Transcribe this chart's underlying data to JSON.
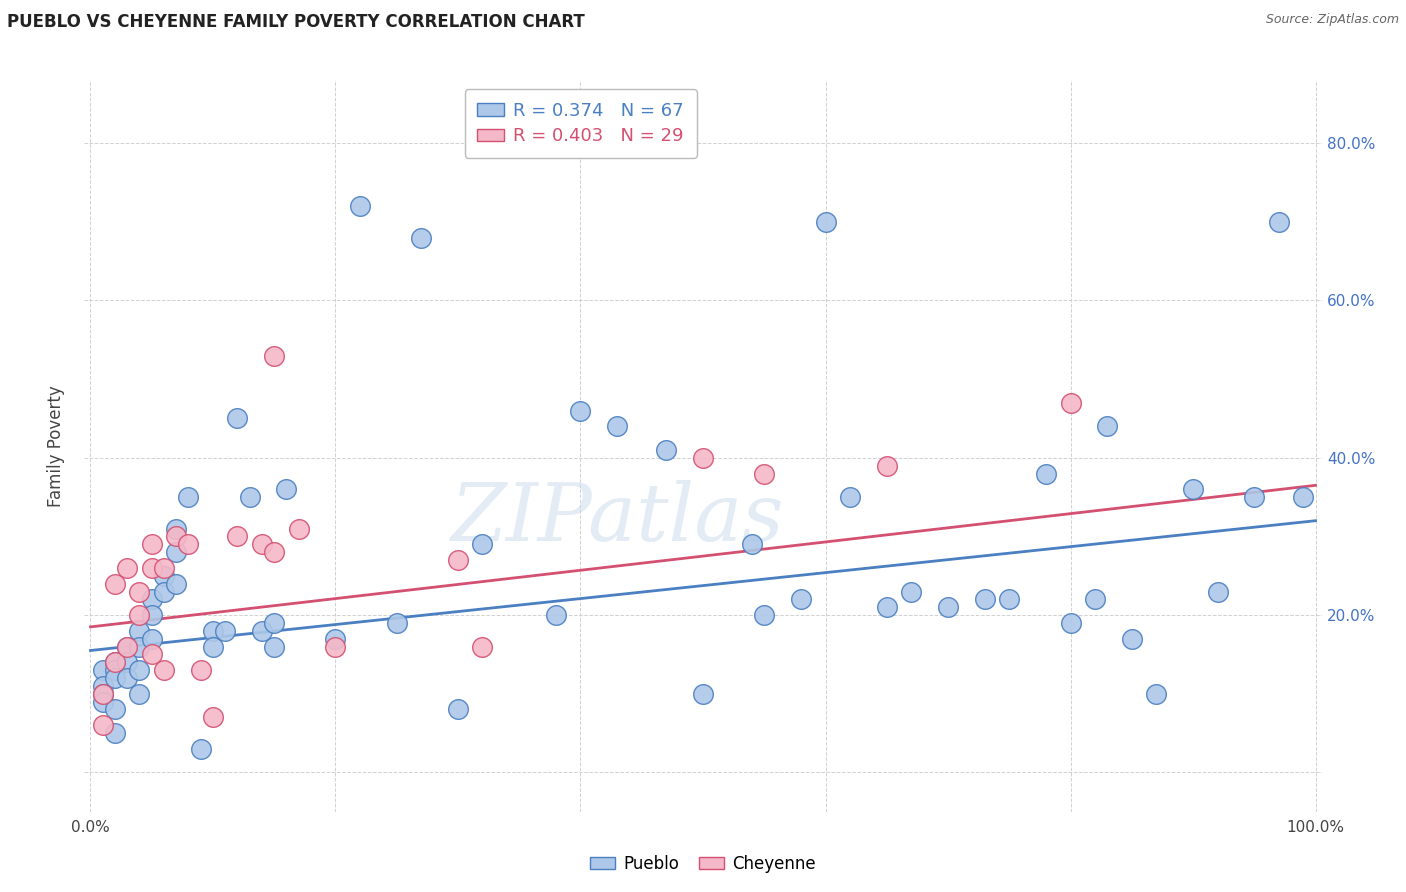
{
  "title": "PUEBLO VS CHEYENNE FAMILY POVERTY CORRELATION CHART",
  "source": "Source: ZipAtlas.com",
  "ylabel": "Family Poverty",
  "pueblo_R": 0.374,
  "pueblo_N": 67,
  "cheyenne_R": 0.403,
  "cheyenne_N": 29,
  "pueblo_color": "#adc8e8",
  "pueblo_edge_color": "#4a7fc1",
  "cheyenne_color": "#f5b8c8",
  "cheyenne_edge_color": "#d45070",
  "pueblo_x": [
    0.01,
    0.01,
    0.01,
    0.01,
    0.02,
    0.02,
    0.02,
    0.02,
    0.02,
    0.03,
    0.03,
    0.03,
    0.04,
    0.04,
    0.04,
    0.04,
    0.05,
    0.05,
    0.05,
    0.06,
    0.06,
    0.07,
    0.07,
    0.07,
    0.08,
    0.09,
    0.1,
    0.1,
    0.11,
    0.12,
    0.13,
    0.14,
    0.15,
    0.15,
    0.16,
    0.2,
    0.22,
    0.25,
    0.27,
    0.3,
    0.32,
    0.38,
    0.4,
    0.43,
    0.47,
    0.5,
    0.54,
    0.55,
    0.58,
    0.6,
    0.62,
    0.65,
    0.67,
    0.7,
    0.73,
    0.75,
    0.78,
    0.8,
    0.82,
    0.83,
    0.85,
    0.87,
    0.9,
    0.92,
    0.95,
    0.97,
    0.99
  ],
  "pueblo_y": [
    0.13,
    0.11,
    0.1,
    0.09,
    0.14,
    0.13,
    0.12,
    0.08,
    0.05,
    0.16,
    0.14,
    0.12,
    0.18,
    0.16,
    0.13,
    0.1,
    0.22,
    0.2,
    0.17,
    0.25,
    0.23,
    0.31,
    0.28,
    0.24,
    0.35,
    0.03,
    0.18,
    0.16,
    0.18,
    0.45,
    0.35,
    0.18,
    0.19,
    0.16,
    0.36,
    0.17,
    0.72,
    0.19,
    0.68,
    0.08,
    0.29,
    0.2,
    0.46,
    0.44,
    0.41,
    0.1,
    0.29,
    0.2,
    0.22,
    0.7,
    0.35,
    0.21,
    0.23,
    0.21,
    0.22,
    0.22,
    0.38,
    0.19,
    0.22,
    0.44,
    0.17,
    0.1,
    0.36,
    0.23,
    0.35,
    0.7,
    0.35
  ],
  "cheyenne_x": [
    0.01,
    0.01,
    0.02,
    0.02,
    0.03,
    0.03,
    0.04,
    0.04,
    0.05,
    0.05,
    0.05,
    0.06,
    0.06,
    0.07,
    0.08,
    0.09,
    0.1,
    0.12,
    0.14,
    0.15,
    0.15,
    0.17,
    0.2,
    0.3,
    0.32,
    0.5,
    0.55,
    0.65,
    0.8
  ],
  "cheyenne_y": [
    0.1,
    0.06,
    0.14,
    0.24,
    0.16,
    0.26,
    0.2,
    0.23,
    0.15,
    0.29,
    0.26,
    0.13,
    0.26,
    0.3,
    0.29,
    0.13,
    0.07,
    0.3,
    0.29,
    0.53,
    0.28,
    0.31,
    0.16,
    0.27,
    0.16,
    0.4,
    0.38,
    0.39,
    0.47
  ],
  "pueblo_line_x": [
    0.0,
    1.0
  ],
  "pueblo_line_y": [
    0.155,
    0.32
  ],
  "cheyenne_line_x": [
    0.0,
    1.0
  ],
  "cheyenne_line_y": [
    0.185,
    0.365
  ],
  "xlim": [
    -0.005,
    1.005
  ],
  "ylim": [
    -0.05,
    0.88
  ],
  "xtick_positions": [
    0.0,
    0.2,
    0.4,
    0.6,
    0.8,
    1.0
  ],
  "xtick_labels": [
    "0.0%",
    "",
    "",
    "",
    "",
    "100.0%"
  ],
  "ytick_positions": [
    0.0,
    0.2,
    0.4,
    0.6,
    0.8
  ],
  "ytick_labels_right": [
    "",
    "20.0%",
    "40.0%",
    "60.0%",
    "80.0%"
  ],
  "background_color": "#ffffff",
  "watermark_text": "ZIPatlas",
  "figsize": [
    14.06,
    8.92
  ],
  "dpi": 100
}
